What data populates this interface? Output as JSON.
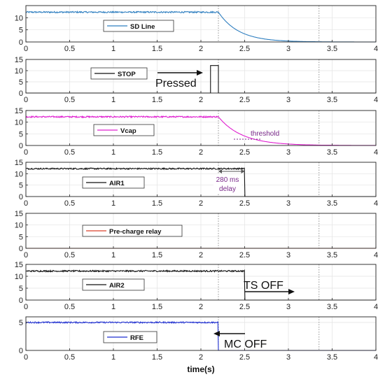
{
  "chart_data": {
    "type": "line",
    "xlabel": "time(s)",
    "xlim": [
      0,
      4
    ],
    "xticks": [
      "0",
      "0.5",
      "1",
      "1.5",
      "2",
      "2.5",
      "3",
      "3.5",
      "4"
    ],
    "vlines": [
      2.2,
      3.35
    ],
    "panels": [
      {
        "id": "sd-line",
        "legend": "SD Line",
        "color": "#2f7fc0",
        "ylim": [
          0,
          15
        ],
        "yticks": [
          "0",
          "5",
          "10"
        ],
        "signal": {
          "level": 12.3,
          "noise": 0.3,
          "t_off": 2.2,
          "fall": "exp",
          "tau": 0.23
        },
        "annotations": []
      },
      {
        "id": "stop",
        "legend": "STOP",
        "color": "#111111",
        "ylim": [
          0,
          15
        ],
        "yticks": [
          "0",
          "5",
          "10",
          "15"
        ],
        "signal": {
          "level": 0,
          "noise": 0,
          "pulse": [
            2.11,
            2.2
          ],
          "pulse_level": 12.3
        },
        "annotations": [
          {
            "text": "Pressed"
          }
        ]
      },
      {
        "id": "vcap",
        "legend": "Vcap",
        "color": "#e020d0",
        "ylim": [
          0,
          15
        ],
        "yticks": [
          "0",
          "5",
          "10",
          "15"
        ],
        "signal": {
          "level": 12.3,
          "noise": 0.3,
          "t_off": 2.2,
          "fall": "exp",
          "tau": 0.27
        },
        "annotations": [
          {
            "text": "threshold",
            "color": "#7a2a8a"
          }
        ]
      },
      {
        "id": "air1",
        "legend": "AIR1",
        "color": "#111111",
        "ylim": [
          0,
          15
        ],
        "yticks": [
          "0",
          "5",
          "10",
          "15"
        ],
        "signal": {
          "level": 12.2,
          "noise": 0.3,
          "t_off": 2.5,
          "fall": "step"
        },
        "annotations": [
          {
            "text": "280 ms",
            "color": "#7a2a8a"
          },
          {
            "text": "delay",
            "color": "#7a2a8a"
          }
        ]
      },
      {
        "id": "precharge",
        "legend": "Pre-charge relay",
        "color": "#d9402a",
        "ylim": [
          0,
          15
        ],
        "yticks": [
          "0",
          "5",
          "10",
          "15"
        ],
        "signal": {
          "level": 0,
          "noise": 0
        },
        "annotations": []
      },
      {
        "id": "air2",
        "legend": "AIR2",
        "color": "#111111",
        "ylim": [
          0,
          15
        ],
        "yticks": [
          "0",
          "5",
          "10",
          "15"
        ],
        "signal": {
          "level": 12.2,
          "noise": 0.3,
          "t_off": 2.5,
          "fall": "step"
        },
        "annotations": [
          {
            "text": "TS OFF"
          }
        ]
      },
      {
        "id": "rfe",
        "legend": "RFE",
        "color": "#1f2fd0",
        "ylim": [
          0,
          6
        ],
        "yticks": [
          "0",
          "5"
        ],
        "signal": {
          "level": 5.0,
          "noise": 0.12,
          "t_off": 2.2,
          "fall": "step"
        },
        "annotations": [
          {
            "text": "MC OFF"
          }
        ]
      }
    ]
  }
}
